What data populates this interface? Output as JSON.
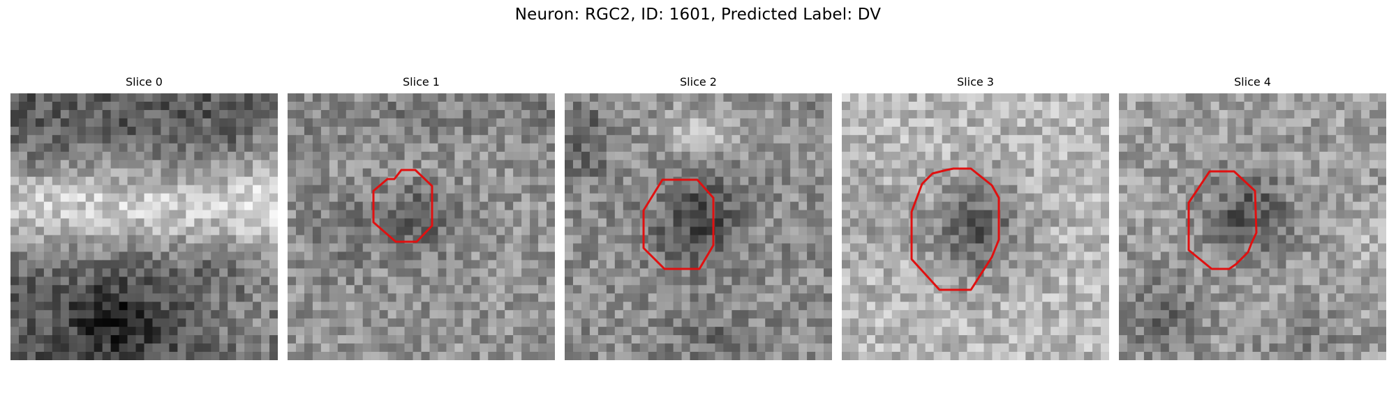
{
  "figure": {
    "title": "Neuron: RGC2, ID: 1601, Predicted Label: DV"
  },
  "contour_color": "#e01010",
  "panels": [
    {
      "title": "Slice 0",
      "contour": false
    },
    {
      "title": "Slice 1",
      "contour": true
    },
    {
      "title": "Slice 2",
      "contour": true
    },
    {
      "title": "Slice 3",
      "contour": true
    },
    {
      "title": "Slice 4",
      "contour": true
    }
  ]
}
